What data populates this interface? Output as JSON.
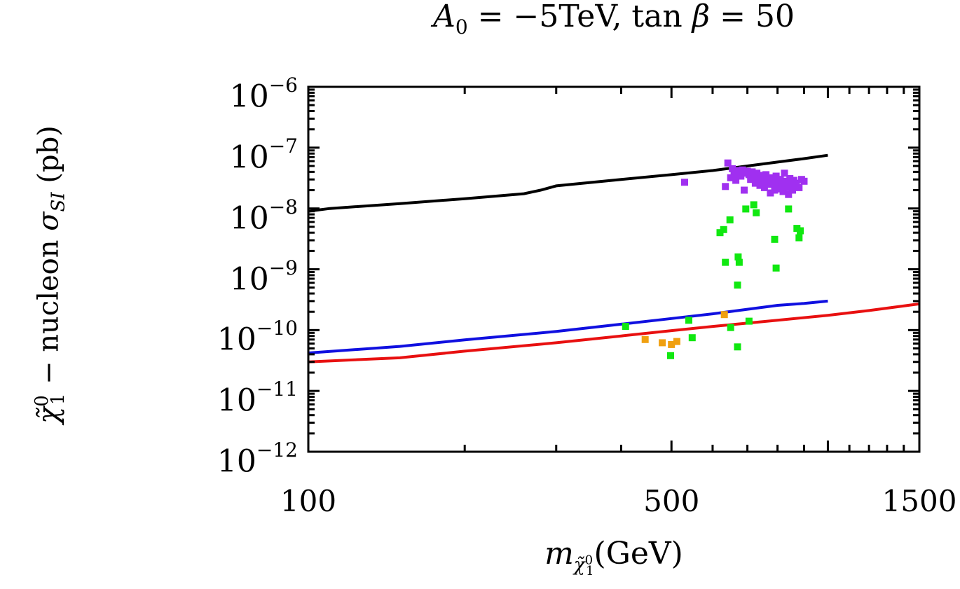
{
  "chart_data": {
    "type": "scatter",
    "title_parts": {
      "a_sym": "A",
      "a_sub": "0",
      "a_val": " = −5TeV,",
      "tan": " tan",
      "beta": "β",
      "b_val": " = 50"
    },
    "xlabel_parts": {
      "m": "m",
      "sub": "χ̃",
      "subsub": "0",
      "subsub2": "1",
      "unit": "(GeV)"
    },
    "ylabel_parts": {
      "chi": "χ̃",
      "sup": "0",
      "sub": "1",
      "text": " − nucleon ",
      "sigma": "σ",
      "sigma_sub": "SI",
      "unit": " (pb)"
    },
    "x_scale": "log",
    "y_scale": "log",
    "xlim": [
      100,
      1500
    ],
    "ylim": [
      1e-12,
      1e-06
    ],
    "x_tick_labels": [
      {
        "value": 100,
        "label": "100"
      },
      {
        "value": 500,
        "label": "500"
      },
      {
        "value": 1500,
        "label": "1500"
      }
    ],
    "y_tick_labels": [
      {
        "value": 1e-06,
        "base": "10",
        "exp": "−6"
      },
      {
        "value": 1e-07,
        "base": "10",
        "exp": "−7"
      },
      {
        "value": 1e-08,
        "base": "10",
        "exp": "−8"
      },
      {
        "value": 1e-09,
        "base": "10",
        "exp": "−9"
      },
      {
        "value": 1e-10,
        "base": "10",
        "exp": "−10"
      },
      {
        "value": 1e-11,
        "base": "10",
        "exp": "−11"
      },
      {
        "value": 1e-12,
        "base": "10",
        "exp": "−12"
      }
    ],
    "lines": [
      {
        "name": "black-limit",
        "color": "#000000",
        "points": [
          [
            100,
            9e-09
          ],
          [
            110,
            1e-08
          ],
          [
            150,
            1.2e-08
          ],
          [
            200,
            1.45e-08
          ],
          [
            260,
            1.75e-08
          ],
          [
            280,
            2e-08
          ],
          [
            300,
            2.35e-08
          ],
          [
            400,
            3e-08
          ],
          [
            500,
            3.6e-08
          ],
          [
            600,
            4.2e-08
          ],
          [
            700,
            5e-08
          ],
          [
            800,
            5.8e-08
          ],
          [
            900,
            6.6e-08
          ],
          [
            1000,
            7.5e-08
          ]
        ]
      },
      {
        "name": "blue-limit",
        "color": "#1010e0",
        "points": [
          [
            100,
            4.2e-11
          ],
          [
            150,
            5.4e-11
          ],
          [
            200,
            6.9e-11
          ],
          [
            300,
            9.5e-11
          ],
          [
            400,
            1.25e-10
          ],
          [
            500,
            1.55e-10
          ],
          [
            600,
            1.85e-10
          ],
          [
            700,
            2.2e-10
          ],
          [
            800,
            2.55e-10
          ],
          [
            900,
            2.75e-10
          ],
          [
            1000,
            3e-10
          ]
        ]
      },
      {
        "name": "red-limit",
        "color": "#e81010",
        "points": [
          [
            100,
            3e-11
          ],
          [
            150,
            3.5e-11
          ],
          [
            200,
            4.5e-11
          ],
          [
            300,
            6.2e-11
          ],
          [
            400,
            8e-11
          ],
          [
            500,
            9.8e-11
          ],
          [
            600,
            1.15e-10
          ],
          [
            800,
            1.45e-10
          ],
          [
            1000,
            1.75e-10
          ],
          [
            1200,
            2.1e-10
          ],
          [
            1500,
            2.7e-10
          ]
        ]
      }
    ],
    "series": [
      {
        "name": "purple",
        "color": "#a030f0",
        "points": [
          [
            530,
            2.7e-08
          ],
          [
            642,
            5.6e-08
          ],
          [
            650,
            3.2e-08
          ],
          [
            655,
            4.5e-08
          ],
          [
            660,
            4e-08
          ],
          [
            665,
            3.5e-08
          ],
          [
            670,
            4.2e-08
          ],
          [
            675,
            3.9e-08
          ],
          [
            680,
            3.4e-08
          ],
          [
            685,
            4.3e-08
          ],
          [
            690,
            3.8e-08
          ],
          [
            700,
            4.1e-08
          ],
          [
            705,
            3.6e-08
          ],
          [
            710,
            3e-08
          ],
          [
            715,
            4e-08
          ],
          [
            720,
            3.3e-08
          ],
          [
            725,
            2.6e-08
          ],
          [
            730,
            3.8e-08
          ],
          [
            735,
            3e-08
          ],
          [
            740,
            2.4e-08
          ],
          [
            745,
            3.5e-08
          ],
          [
            750,
            2.8e-08
          ],
          [
            755,
            2.2e-08
          ],
          [
            760,
            3.6e-08
          ],
          [
            765,
            2.9e-08
          ],
          [
            770,
            2.5e-08
          ],
          [
            775,
            1.8e-08
          ],
          [
            780,
            3.2e-08
          ],
          [
            785,
            2.6e-08
          ],
          [
            790,
            2e-08
          ],
          [
            795,
            3.4e-08
          ],
          [
            800,
            2.7e-08
          ],
          [
            805,
            2.1e-08
          ],
          [
            810,
            3e-08
          ],
          [
            815,
            2.4e-08
          ],
          [
            820,
            1.9e-08
          ],
          [
            825,
            3.8e-08
          ],
          [
            830,
            2.8e-08
          ],
          [
            835,
            2.2e-08
          ],
          [
            840,
            1.7e-08
          ],
          [
            845,
            3.1e-08
          ],
          [
            850,
            2.5e-08
          ],
          [
            855,
            2e-08
          ],
          [
            860,
            2.9e-08
          ],
          [
            870,
            2.6e-08
          ],
          [
            880,
            2.2e-08
          ],
          [
            890,
            3e-08
          ],
          [
            900,
            2.8e-08
          ],
          [
            635,
            2.3e-08
          ],
          [
            690,
            2e-08
          ],
          [
            665,
            2.9e-08
          ]
        ]
      },
      {
        "name": "green",
        "color": "#10e810",
        "points": [
          [
            408,
            1.15e-10
          ],
          [
            498,
            3.8e-11
          ],
          [
            540,
            1.45e-10
          ],
          [
            548,
            7.5e-11
          ],
          [
            620,
            4e-09
          ],
          [
            630,
            4.5e-09
          ],
          [
            635,
            1.3e-09
          ],
          [
            648,
            6.5e-09
          ],
          [
            650,
            1.1e-10
          ],
          [
            670,
            5.5e-10
          ],
          [
            672,
            1.6e-09
          ],
          [
            675,
            1.3e-09
          ],
          [
            695,
            9.8e-09
          ],
          [
            705,
            1.4e-10
          ],
          [
            720,
            1.15e-08
          ],
          [
            728,
            8.5e-09
          ],
          [
            670,
            5.3e-11
          ],
          [
            790,
            3.1e-09
          ],
          [
            795,
            1.05e-09
          ],
          [
            840,
            9.8e-09
          ],
          [
            872,
            4.7e-09
          ],
          [
            880,
            3.3e-09
          ],
          [
            885,
            4.3e-09
          ]
        ]
      },
      {
        "name": "orange",
        "color": "#f0a010",
        "points": [
          [
            445,
            7e-11
          ],
          [
            480,
            6.2e-11
          ],
          [
            500,
            5.8e-11
          ],
          [
            512,
            6.5e-11
          ],
          [
            632,
            1.8e-10
          ]
        ]
      }
    ]
  }
}
